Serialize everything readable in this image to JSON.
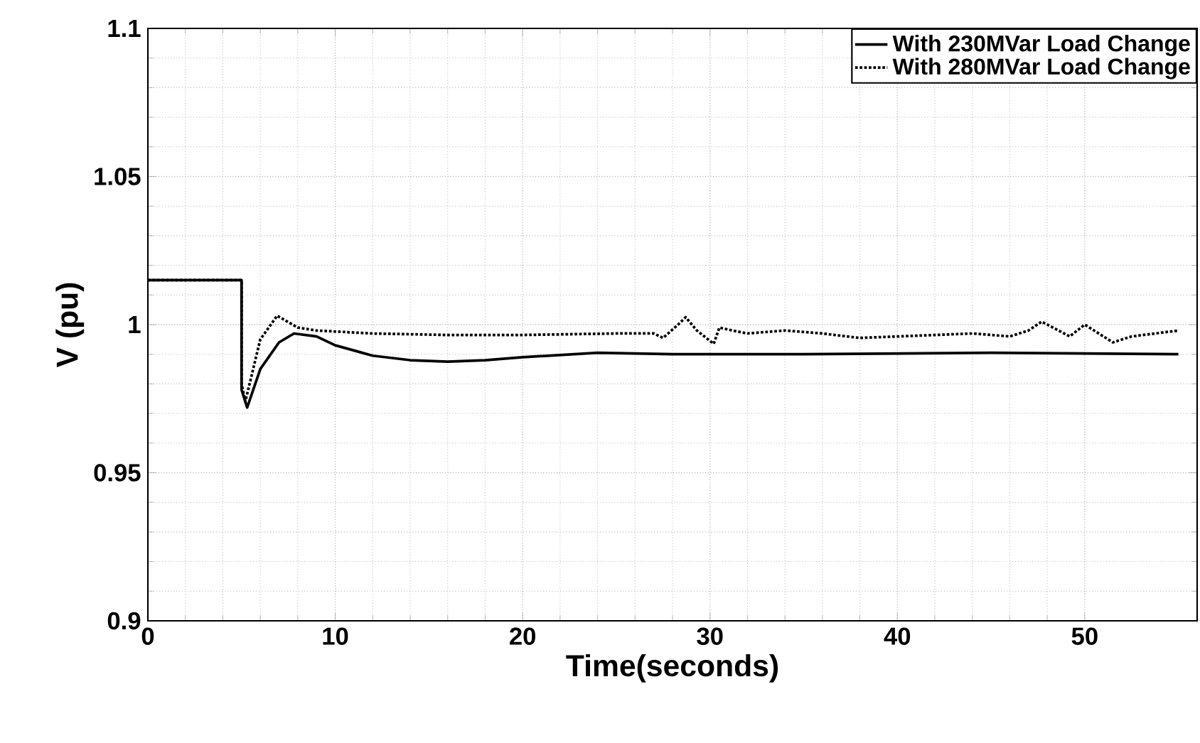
{
  "chart_data": {
    "type": "line",
    "xlabel": "Time(seconds)",
    "ylabel": "V (pu)",
    "xlim": [
      0,
      56
    ],
    "ylim": [
      0.9,
      1.1
    ],
    "xticks": [
      0,
      10,
      20,
      30,
      40,
      50
    ],
    "yticks": [
      0.9,
      0.95,
      1,
      1.05,
      1.1
    ],
    "grid": true,
    "legend": "top right",
    "marker": "none",
    "series": [
      {
        "name": "With 230MVar Load Change",
        "color": "#000000",
        "line_style": "solid",
        "x": [
          0,
          5,
          5,
          5.3,
          6,
          7,
          7.8,
          9,
          10,
          12,
          14,
          16,
          18,
          20,
          24,
          28,
          35,
          45,
          55
        ],
        "values": [
          1.015,
          1.015,
          0.978,
          0.972,
          0.985,
          0.994,
          0.997,
          0.996,
          0.993,
          0.9895,
          0.988,
          0.9875,
          0.988,
          0.989,
          0.9905,
          0.99,
          0.99,
          0.9905,
          0.99
        ]
      },
      {
        "name": "With 280MVar Load Change",
        "color": "#000000",
        "line_style": "dotted",
        "x": [
          0,
          5,
          5,
          5.2,
          6,
          6.9,
          8,
          9,
          12,
          16,
          20,
          25,
          27,
          27.5,
          28.3,
          28.7,
          29.3,
          30.2,
          30.5,
          31.2,
          32,
          34,
          36,
          38,
          40,
          44,
          46,
          47,
          47.7,
          49.2,
          50,
          51.5,
          52.5,
          55
        ],
        "values": [
          1.015,
          1.015,
          0.98,
          0.974,
          0.995,
          1.003,
          0.999,
          0.998,
          0.997,
          0.9965,
          0.9965,
          0.997,
          0.997,
          0.9955,
          1.0,
          1.0025,
          0.998,
          0.9935,
          0.999,
          0.998,
          0.997,
          0.998,
          0.997,
          0.9955,
          0.996,
          0.997,
          0.996,
          0.998,
          1.001,
          0.996,
          1.0,
          0.994,
          0.996,
          0.998
        ]
      }
    ]
  }
}
